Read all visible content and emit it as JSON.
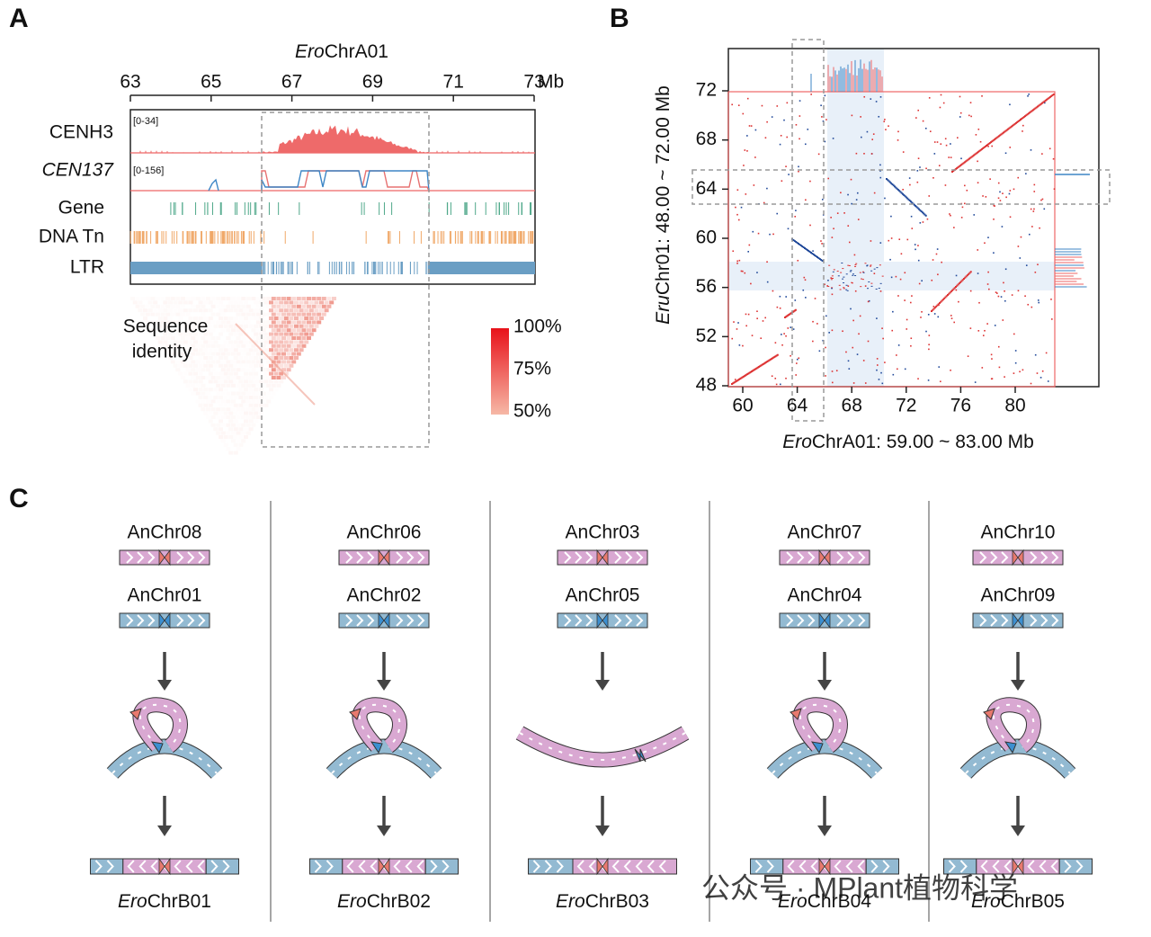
{
  "panels": {
    "A": {
      "label": "A",
      "title": {
        "italic": "Ero",
        "rest": "ChrA01"
      },
      "axis_ticks": [
        63,
        65,
        67,
        69,
        71,
        73
      ],
      "axis_unit": "Mb",
      "tracks": [
        {
          "name": "CENH3",
          "range": "[0-34]"
        },
        {
          "name": "CEN137",
          "range": "[0-156]"
        },
        {
          "name": "Gene"
        },
        {
          "name": "DNA Tn"
        },
        {
          "name": "LTR"
        }
      ],
      "heatmap_label": [
        "Sequence",
        "identity"
      ],
      "legend_ticks": [
        "100%",
        "75%",
        "50%"
      ]
    },
    "B": {
      "label": "B",
      "y_ticks": [
        72,
        68,
        64,
        60,
        56,
        52,
        48
      ],
      "x_ticks": [
        60,
        64,
        68,
        72,
        76,
        80
      ],
      "y_title": {
        "italic": "Eru",
        "rest": "Chr01: 48.00 ~ 72.00 Mb"
      },
      "x_title": {
        "italic": "Ero",
        "rest": "ChrA01: 59.00 ~ 83.00 Mb"
      }
    },
    "C": {
      "label": "C",
      "columns": [
        {
          "top": "AnChr08",
          "bottom": "AnChr01",
          "result": {
            "italic": "Ero",
            "rest": "ChrB01"
          }
        },
        {
          "top": "AnChr06",
          "bottom": "AnChr02",
          "result": {
            "italic": "Ero",
            "rest": "ChrB02"
          }
        },
        {
          "top": "AnChr03",
          "bottom": "AnChr05",
          "result": {
            "italic": "Ero",
            "rest": "ChrB03"
          }
        },
        {
          "top": "AnChr07",
          "bottom": "AnChr04",
          "result": {
            "italic": "Ero",
            "rest": "ChrB04"
          }
        },
        {
          "top": "AnChr10",
          "bottom": "AnChr09",
          "result": {
            "italic": "Ero",
            "rest": "ChrB05"
          }
        }
      ]
    }
  },
  "watermark": "公众号 · MPlant植物科学"
}
